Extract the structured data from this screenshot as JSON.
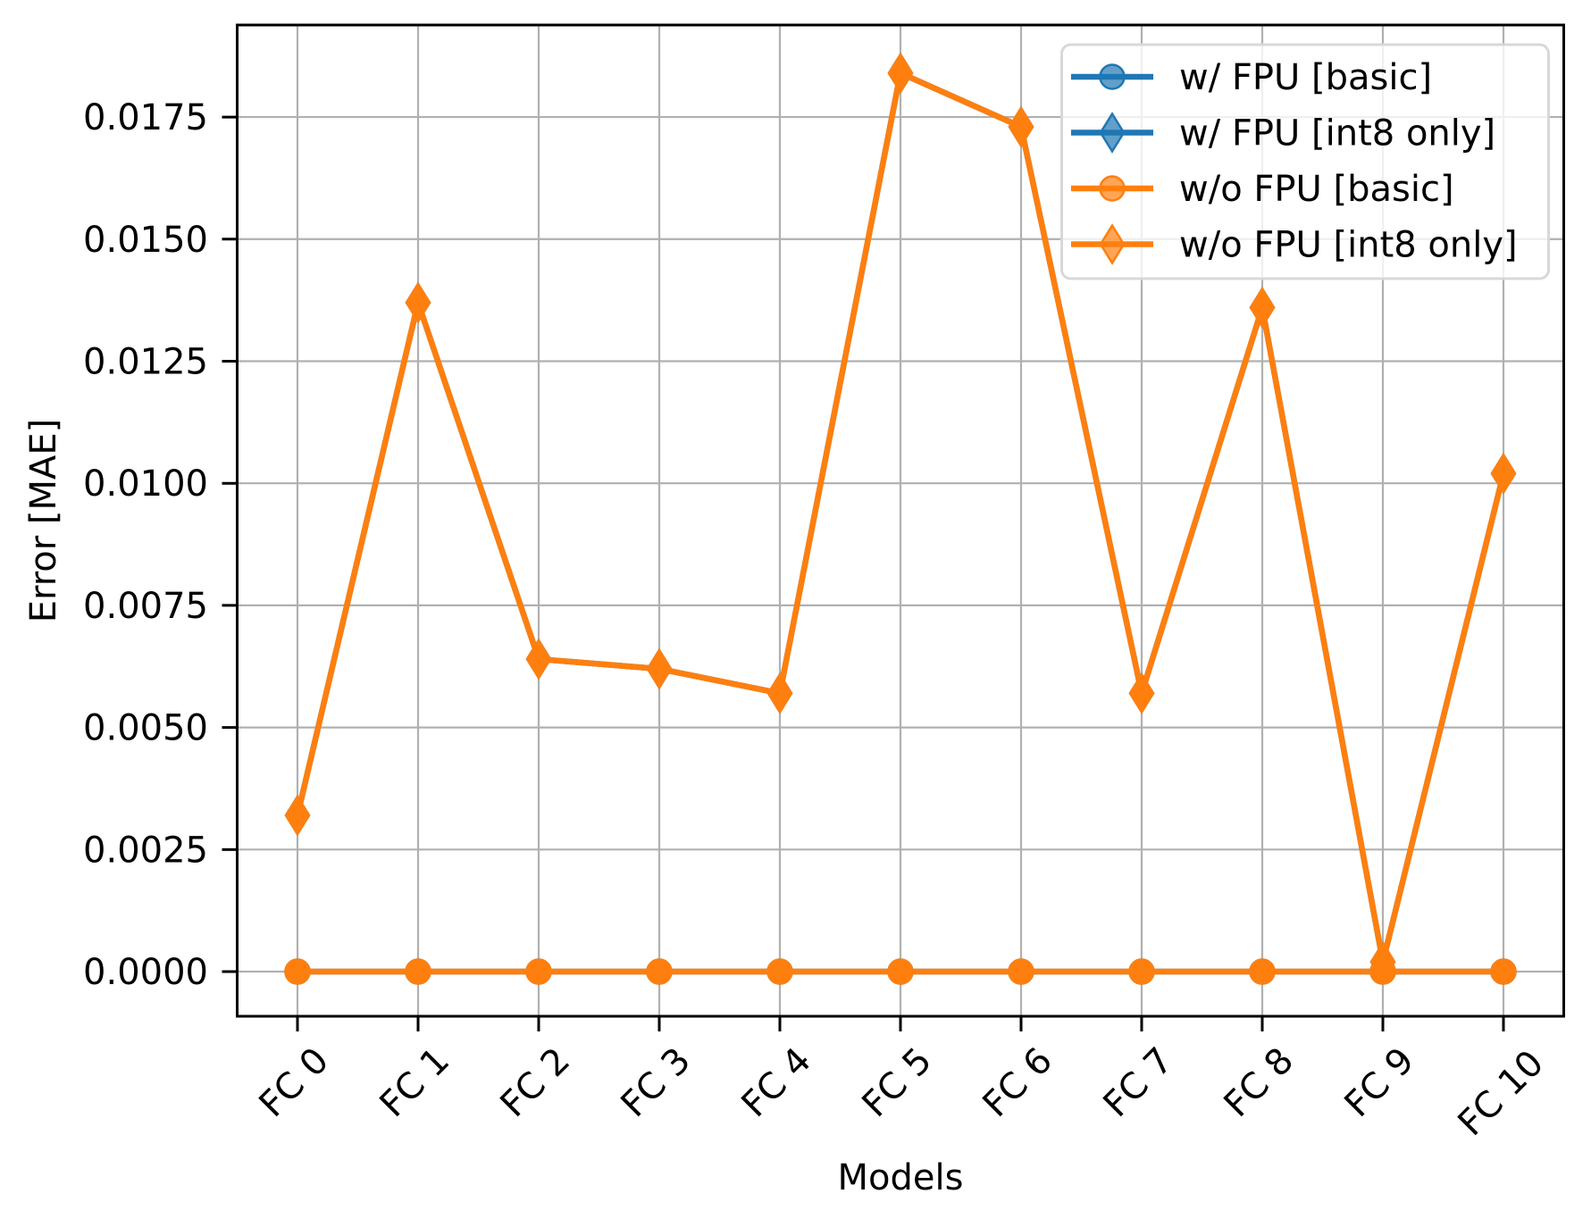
{
  "chart_data": {
    "type": "line",
    "title": "",
    "xlabel": "Models",
    "ylabel": "Error [MAE]",
    "categories": [
      "FC 0",
      "FC 1",
      "FC 2",
      "FC 3",
      "FC 4",
      "FC 5",
      "FC 6",
      "FC 7",
      "FC 8",
      "FC 9",
      "FC 10"
    ],
    "yticks": [
      "0.0000",
      "0.0025",
      "0.0050",
      "0.0075",
      "0.0100",
      "0.0125",
      "0.0150",
      "0.0175"
    ],
    "ytick_values": [
      0.0,
      0.0025,
      0.005,
      0.0075,
      0.01,
      0.0125,
      0.015,
      0.0175
    ],
    "ylim": [
      -0.000914,
      0.019385
    ],
    "grid": true,
    "legend_position": "upper right",
    "series": [
      {
        "name": "w/ FPU [basic]",
        "color": "#1f77b4",
        "marker": "circle",
        "values": [
          0,
          0,
          0,
          0,
          0,
          0,
          0,
          0,
          0,
          0,
          0
        ]
      },
      {
        "name": "w/ FPU [int8 only]",
        "color": "#1f77b4",
        "marker": "diamond",
        "values": [
          0.0032,
          0.0137,
          0.0064,
          0.0062,
          0.0057,
          0.0184,
          0.0173,
          0.0057,
          0.0136,
          0.0002,
          0.0102
        ]
      },
      {
        "name": "w/o FPU [basic]",
        "color": "#ff7f0e",
        "marker": "circle",
        "values": [
          0,
          0,
          0,
          0,
          0,
          0,
          0,
          0,
          0,
          0,
          0
        ]
      },
      {
        "name": "w/o FPU [int8 only]",
        "color": "#ff7f0e",
        "marker": "diamond",
        "values": [
          0.0032,
          0.0137,
          0.0064,
          0.0062,
          0.0057,
          0.0184,
          0.0173,
          0.0057,
          0.0136,
          0.0002,
          0.0102
        ]
      }
    ]
  }
}
